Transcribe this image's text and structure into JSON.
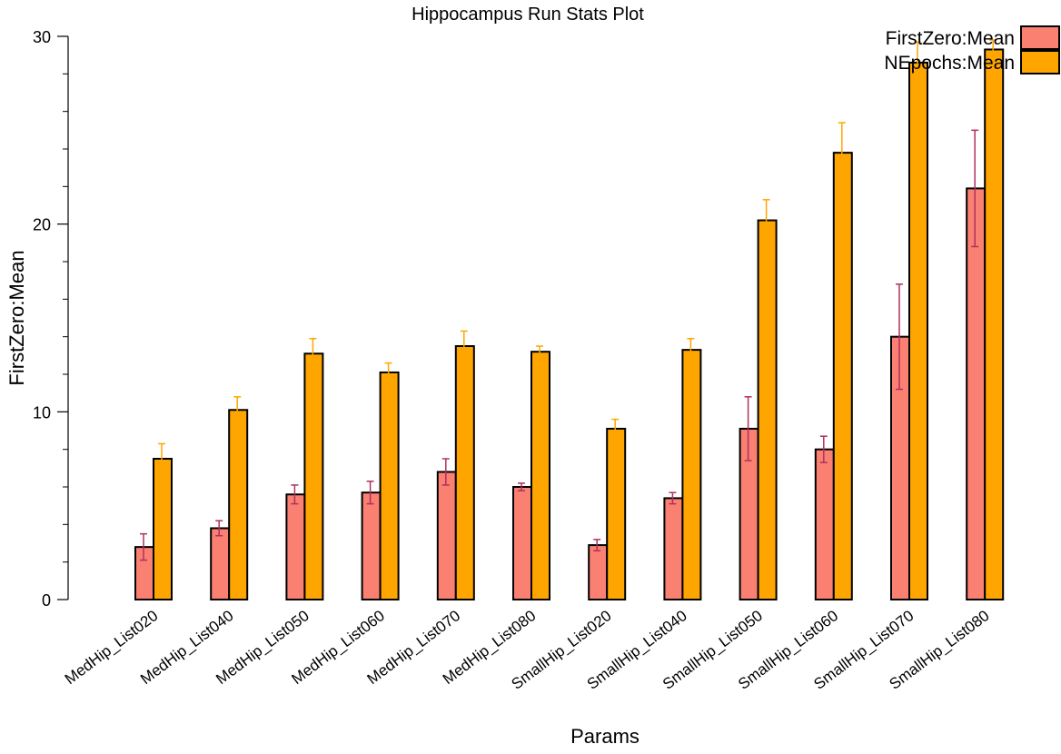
{
  "chart_data": {
    "type": "bar",
    "title": "Hippocampus Run Stats Plot",
    "xlabel": "Params",
    "ylabel": "FirstZero:Mean",
    "ylim": [
      0,
      30
    ],
    "yticks": [
      "0",
      "10",
      "20",
      "30"
    ],
    "grid": false,
    "legend_position": "top-right",
    "categories": [
      "MedHip_List020",
      "MedHip_List040",
      "MedHip_List050",
      "MedHip_List060",
      "MedHip_List070",
      "MedHip_List080",
      "SmallHip_List020",
      "SmallHip_List040",
      "SmallHip_List050",
      "SmallHip_List060",
      "SmallHip_List070",
      "SmallHip_List080"
    ],
    "series": [
      {
        "name": "FirstZero:Mean",
        "color": "#fa8072",
        "error_color": "#b03060",
        "values": [
          2.8,
          3.8,
          5.6,
          5.7,
          6.8,
          6.0,
          2.9,
          5.4,
          9.1,
          8.0,
          14.0,
          21.9
        ],
        "error": [
          0.7,
          0.4,
          0.5,
          0.6,
          0.7,
          0.2,
          0.3,
          0.3,
          1.7,
          0.7,
          2.8,
          3.1
        ]
      },
      {
        "name": "NEpochs:Mean",
        "color": "#ffa500",
        "error_color": "#ffa500",
        "values": [
          7.5,
          10.1,
          13.1,
          12.1,
          13.5,
          13.2,
          9.1,
          13.3,
          20.2,
          23.8,
          28.6,
          29.3
        ],
        "error": [
          0.8,
          0.7,
          0.8,
          0.5,
          0.8,
          0.3,
          0.5,
          0.6,
          1.1,
          1.6,
          1.1,
          0.5
        ]
      }
    ]
  }
}
